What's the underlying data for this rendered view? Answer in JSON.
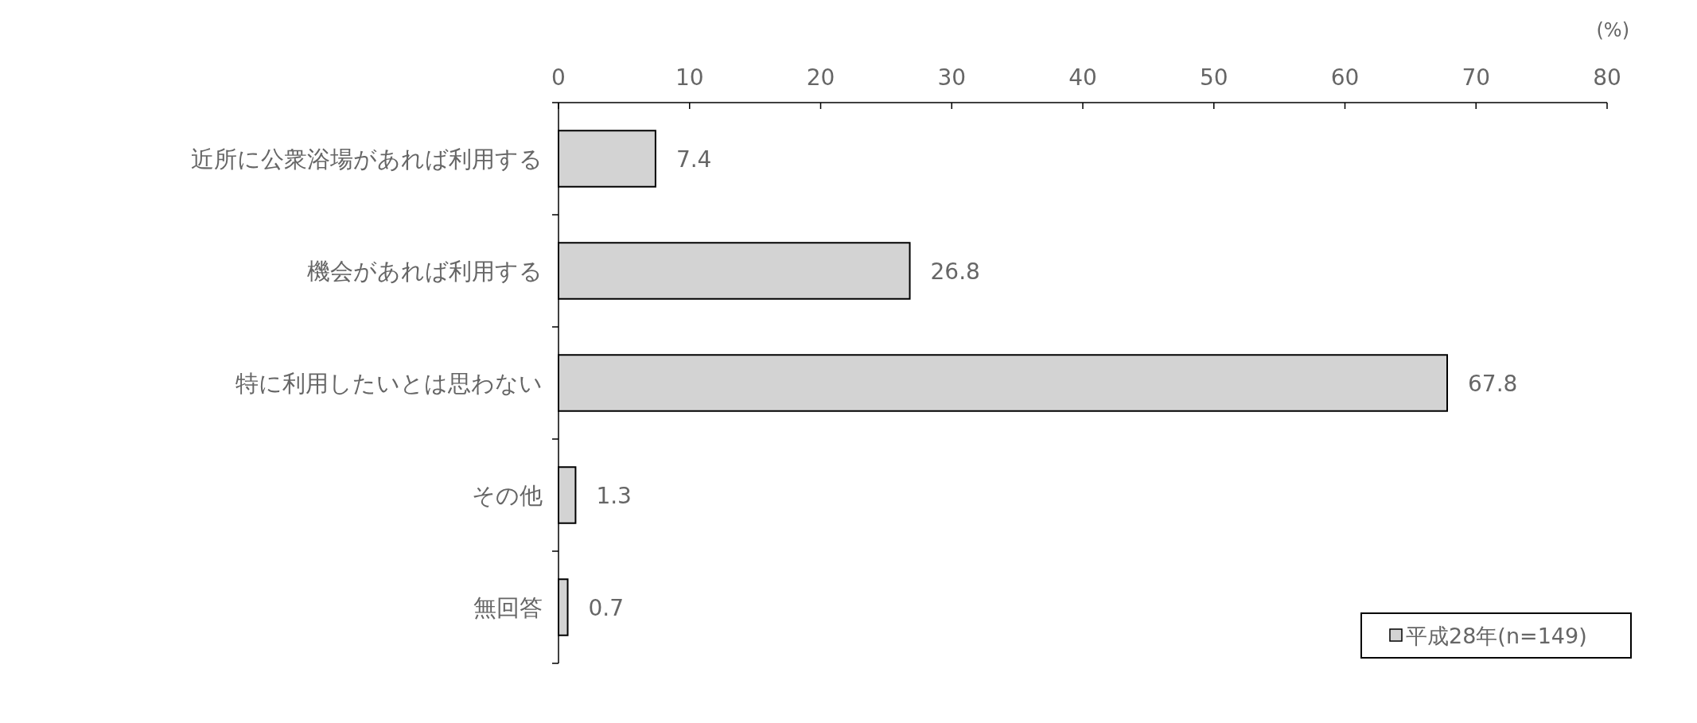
{
  "chart_data": {
    "type": "bar",
    "orientation": "horizontal",
    "categories": [
      "近所に公衆浴場があれば利用する",
      "機会があれば利用する",
      "特に利用したいとは思わない",
      "その他",
      "無回答"
    ],
    "series": [
      {
        "name": "平成28年(n=149)",
        "color": "#d3d3d3",
        "values": [
          7.4,
          26.8,
          67.8,
          1.3,
          0.7
        ]
      }
    ],
    "xlim": [
      0,
      80
    ],
    "xticks": [
      0,
      10,
      20,
      30,
      40,
      50,
      60,
      70,
      80
    ],
    "data_labels": true,
    "legend": "bottom right",
    "grid": false,
    "annotations": [
      "(%)"
    ]
  }
}
